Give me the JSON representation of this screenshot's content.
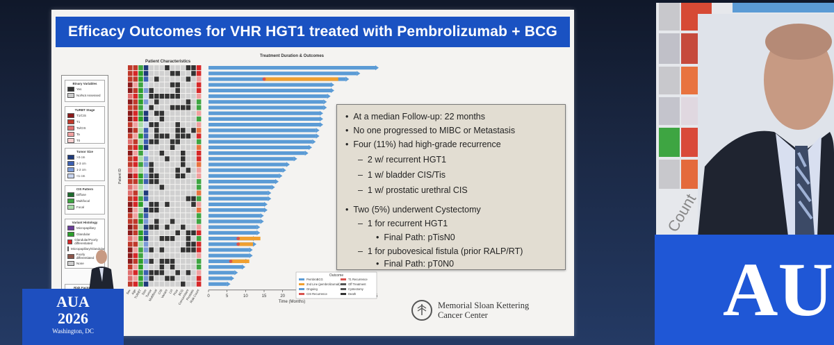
{
  "slide": {
    "title": "Efficacy Outcomes for VHR HGT1 treated with Pembrolizumab + BCG",
    "heatmap_title": "Patient Characteristics",
    "bars_title": "Treatment Duration & Outcomes"
  },
  "legend": {
    "binary": {
      "title": "Binary Variables",
      "items": [
        "Yes",
        "No/Not Assessed"
      ]
    },
    "turbt": {
      "title": "TURBT Stage",
      "items": [
        "T1/CIS",
        "T1",
        "Ta/CIS",
        "Ta",
        "T0"
      ]
    },
    "tumor_size": {
      "title": "Tumor Size",
      "items": [
        ">3 cm",
        "2-3 cm",
        "1-2 cm",
        "<1 cm"
      ]
    },
    "cis": {
      "title": "CIS Pattern",
      "items": [
        "Diffuse",
        "Multifocal",
        "Focal"
      ]
    },
    "variant": {
      "title": "Variant Histology",
      "items": [
        "Micropapillary",
        "Glandular",
        "Glandular/Poorly differentiated",
        "Micropapillary/Glandular",
        "Poorly differentiated",
        "None"
      ]
    },
    "risk": {
      "title": "Risk Factor Co"
    }
  },
  "info_box": {
    "lines": [
      "At a median Follow-up: 22 months",
      "No one progressed to MIBC or Metastasis",
      "Four (11%) had high-grade recurrence",
      "2 w/ recurrent HGT1",
      "1 w/ bladder CIS/Tis",
      "1 w/ prostatic urethral CIS",
      "Two (5%) underwent Cystectomy",
      "1 for recurrent HGT1",
      "Final Path: pTisN0",
      "1 for pubovesical fistula (prior RALP/RT)",
      "Final Path: pT0N0"
    ]
  },
  "chart_data": {
    "type": "bar",
    "title": "Treatment Duration & Outcomes",
    "xlabel": "Time (Months)",
    "ylabel": "Patient ID",
    "xlim": [
      0,
      45
    ],
    "xticks": [
      0,
      5,
      10,
      15,
      20,
      25,
      30,
      35,
      40,
      45
    ],
    "values": [
      45,
      40,
      37,
      33,
      33,
      32,
      31,
      31,
      30,
      30,
      30,
      29,
      29,
      28,
      27,
      26,
      23,
      21,
      20,
      19,
      18,
      17,
      16,
      16,
      15,
      15,
      14,
      14,
      13,
      13,
      12,
      12,
      11,
      11,
      10,
      9,
      7,
      6,
      5
    ],
    "second_line": [
      null,
      null,
      [
        15,
        35
      ],
      null,
      null,
      null,
      null,
      null,
      null,
      null,
      null,
      null,
      null,
      null,
      null,
      null,
      null,
      null,
      null,
      null,
      null,
      null,
      null,
      null,
      null,
      null,
      null,
      null,
      null,
      null,
      [
        8,
        14
      ],
      [
        8,
        12
      ],
      null,
      null,
      [
        6,
        11
      ],
      null,
      null,
      null,
      null
    ],
    "outcome_legend_title": "Outcome",
    "outcome_legend": [
      "PembroBCG",
      "2nd Line (pembrolizumab)",
      "Ongoing",
      "CIS Recurrence",
      "T1 Recurrence",
      "Off Treatment",
      "Cystectomy",
      "Death"
    ],
    "colors": {
      "bar": "#5b9bd5",
      "second": "#f0a030",
      "recurrence": "#d9534f"
    }
  },
  "heatmap": {
    "rows": 39,
    "cols": 14,
    "column_labels": [
      "Sex",
      "Age",
      "TURBT",
      "Size",
      "Tumor",
      "Multifocal",
      "CIS",
      "Variant",
      "LVI",
      "Prior",
      "BCG",
      "Concomitant",
      "Prostatic",
      "Risk Count"
    ]
  },
  "logo": {
    "line1": "Memorial Sloan Kettering",
    "line2": "Cancer Center",
    "mark": "1884"
  },
  "podium": {
    "line1": "AUA",
    "line2": "2026",
    "line3": "Washington, DC"
  },
  "right_screen": {
    "label": "Count",
    "aua": "AU"
  }
}
